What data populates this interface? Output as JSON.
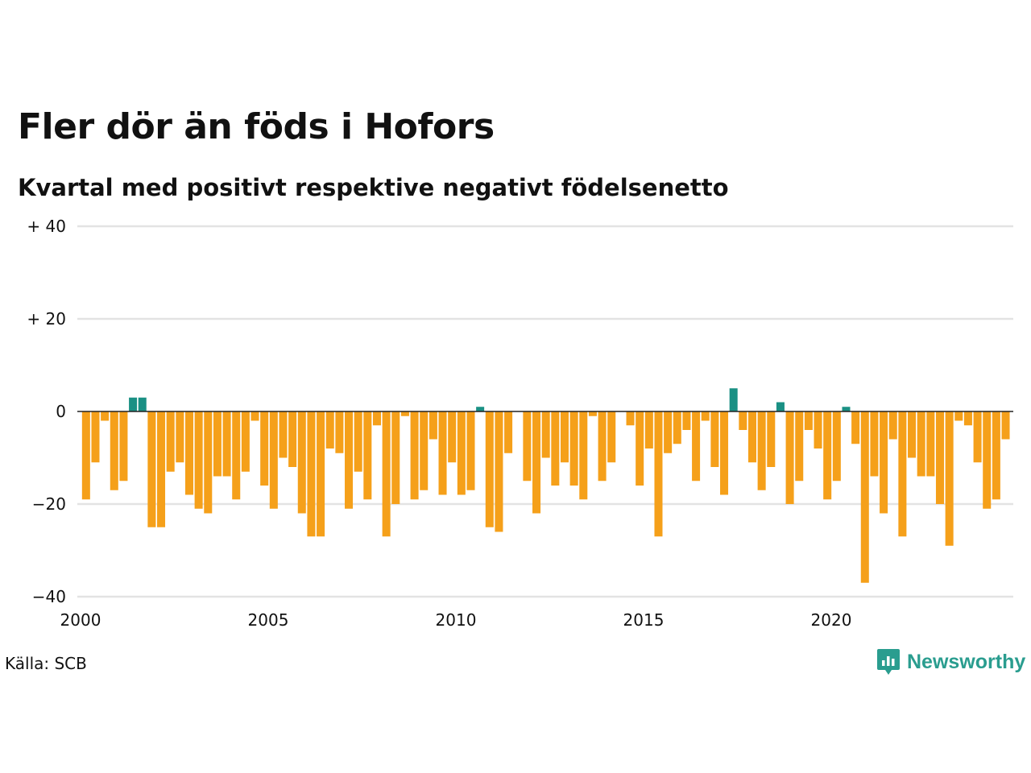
{
  "chart_data": {
    "type": "bar",
    "title": "Fler dör än föds i Hofors",
    "subtitle": "Kvartal med positivt respektive negativt födelsenetto",
    "xlabel": "",
    "ylabel": "",
    "ylim": [
      -40,
      40
    ],
    "xlim": [
      2000,
      2024.9
    ],
    "y_ticks": [
      {
        "value": 40,
        "label": "+ 40"
      },
      {
        "value": 20,
        "label": "+ 20"
      },
      {
        "value": 0,
        "label": "0"
      },
      {
        "value": -20,
        "label": "−20"
      },
      {
        "value": -40,
        "label": "−40"
      }
    ],
    "x_ticks": [
      {
        "value": 2000,
        "label": "2000"
      },
      {
        "value": 2005,
        "label": "2005"
      },
      {
        "value": 2010,
        "label": "2010"
      },
      {
        "value": 2015,
        "label": "2015"
      },
      {
        "value": 2020,
        "label": "2020"
      }
    ],
    "grid": true,
    "colors": {
      "positive": "#1a9084",
      "negative": "#f5a01a",
      "grid": "#e3e3e3",
      "zero_line": "#222222"
    },
    "series": [
      {
        "values": [
          -19,
          -11,
          -2,
          -17,
          -15,
          3,
          3,
          -25,
          -25,
          -13,
          -11,
          -18,
          -21,
          -22,
          -14,
          -14,
          -19,
          -13,
          -2,
          -16,
          -21,
          -10,
          -12,
          -22,
          -27,
          -27,
          -8,
          -9,
          -21,
          -13,
          -19,
          -3,
          -27,
          -20,
          -1,
          -19,
          -17,
          -6,
          -18,
          -11,
          -18,
          -17,
          1,
          -25,
          -26,
          -9,
          0,
          -15,
          -22,
          -10,
          -16,
          -11,
          -16,
          -19,
          -1,
          -15,
          -11,
          0,
          -3,
          -16,
          -8,
          -27,
          -9,
          -7,
          -4,
          -15,
          -2,
          -12,
          -18,
          5,
          -4,
          -11,
          -17,
          -12,
          2,
          -20,
          -15,
          -4,
          -8,
          -19,
          -15,
          1,
          -7,
          -37,
          -14,
          -22,
          -6,
          -27,
          -10,
          -14,
          -14,
          -20,
          -29,
          -2,
          -3,
          -11,
          -21,
          -19,
          -6
        ]
      }
    ]
  },
  "source": "Källa: SCB",
  "logo": {
    "text": "Newsworthy",
    "icon": "newsworthy-logo-icon",
    "color": "#2a9d8f"
  }
}
